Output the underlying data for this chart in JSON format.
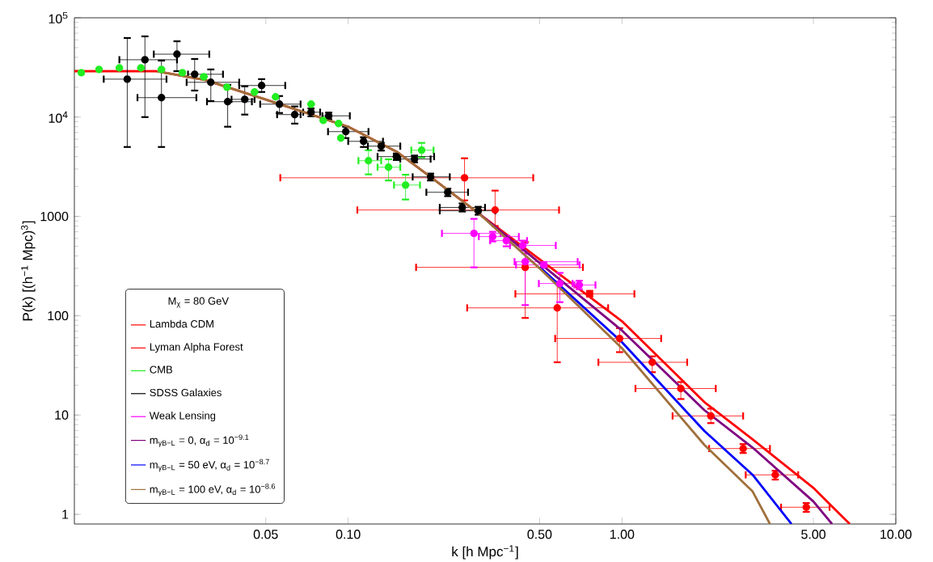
{
  "chart_data": {
    "type": "scatter",
    "xlabel": "k [h Mpc$^{−1}$]",
    "ylabel": "P(k)  [(h$^{−1}$ Mpc)$^{3}$]",
    "legend_title": "M$_{χ}$ = 80 GeV",
    "log": "xy",
    "legend": "bottom left",
    "xlim": [
      0.01,
      10
    ],
    "ylim": [
      0.8,
      100000
    ],
    "xticks": [
      0.05,
      {
        "value": 0.1,
        "label": "0.10"
      },
      {
        "value": 0.5,
        "label": "0.50"
      },
      {
        "value": 1,
        "label": "1.00"
      },
      {
        "value": 5,
        "label": "5.00"
      },
      {
        "value": 10,
        "label": "10.00"
      }
    ],
    "yticks": [
      1,
      10,
      100,
      1000,
      {
        "value": 10000,
        "label": "10$^{4}$"
      },
      {
        "value": 100000,
        "label": "10$^{5}$"
      }
    ],
    "series": [
      {
        "name": "Lambda CDM",
        "type": "line",
        "marker": "none",
        "color": "#ff0000",
        "x": [
          0.01,
          0.02,
          0.03,
          0.05,
          0.1,
          0.15,
          0.2,
          0.3,
          0.5,
          1,
          2,
          3,
          5,
          6.79
        ],
        "values": [
          29000,
          29000,
          23700,
          15000,
          8000,
          4500,
          2500,
          1070,
          370,
          88,
          13.5,
          5.7,
          1.85,
          0.8
        ]
      },
      {
        "name": "Lyman Alpha Forest",
        "marker": "circle",
        "color": "#ff0000",
        "x": [
          0.266,
          0.344,
          0.443,
          0.58,
          0.762,
          0.98,
          1.29,
          1.64,
          2.11,
          2.77,
          3.63,
          4.71
        ],
        "values": [
          2450,
          1160,
          307,
          120,
          166,
          59,
          34,
          18.5,
          9.8,
          4.6,
          2.5,
          1.18
        ],
        "xerrors": [
          [
            0.0565,
            0.474
          ],
          [
            0.108,
            0.589
          ],
          [
            0.177,
            0.72
          ],
          [
            0.272,
            0.89
          ],
          [
            0.408,
            1.11
          ],
          [
            0.57,
            1.39
          ],
          [
            0.82,
            1.73
          ],
          [
            1.12,
            2.2
          ],
          [
            1.53,
            2.77
          ],
          [
            2.08,
            3.47
          ],
          [
            2.83,
            4.4
          ],
          [
            3.81,
            5.73
          ]
        ],
        "errors": [
          [
            1450,
            3850
          ],
          [
            800,
            1820
          ],
          [
            95,
            550
          ],
          [
            34,
            220
          ],
          [
            156,
            178
          ],
          [
            43,
            75
          ],
          [
            27,
            39
          ],
          [
            14.5,
            21.5
          ],
          [
            8.3,
            11.6
          ],
          [
            4.15,
            5.1
          ],
          [
            2.24,
            2.75
          ],
          [
            1.06,
            1.3
          ]
        ]
      },
      {
        "name": "CMB",
        "marker": "circle",
        "color": "#22ee22",
        "x": [
          0.0106,
          0.0123,
          0.0146,
          0.0175,
          0.0208,
          0.0248,
          0.0297,
          0.0361,
          0.0455,
          0.0543,
          0.0732,
          0.0811,
          0.0922,
          0.094,
          0.1186,
          0.1404,
          0.162,
          0.1855
        ],
        "values": [
          28000,
          30200,
          31300,
          31300,
          30200,
          28000,
          25500,
          20000,
          17900,
          16000,
          13500,
          9270,
          8610,
          6150,
          3640,
          3130,
          2070,
          4640
        ],
        "xerrors": [
          null,
          null,
          null,
          null,
          null,
          null,
          null,
          null,
          null,
          null,
          null,
          null,
          null,
          null,
          [
            0.109,
            0.132
          ],
          [
            0.128,
            0.155
          ],
          [
            0.147,
            0.183
          ],
          [
            0.17,
            0.205
          ]
        ],
        "errors": [
          null,
          null,
          null,
          null,
          null,
          null,
          null,
          null,
          null,
          null,
          null,
          null,
          null,
          null,
          [
            2650,
            4640
          ],
          [
            2300,
            3760
          ],
          [
            1480,
            2630
          ],
          [
            3930,
            5500
          ]
        ]
      },
      {
        "name": "SDSS Galaxies",
        "marker": "circle",
        "color": "#000000",
        "x": [
          0.0156,
          0.0181,
          0.0208,
          0.0237,
          0.0275,
          0.0315,
          0.0363,
          0.0419,
          0.0483,
          0.0561,
          0.0638,
          0.0732,
          0.0849,
          0.098,
          0.1138,
          0.132,
          0.15,
          0.1746,
          0.2,
          0.231,
          0.261,
          0.2985
        ],
        "values": [
          24100,
          37800,
          15700,
          43000,
          27000,
          22400,
          14300,
          15100,
          20800,
          13500,
          10600,
          11200,
          10300,
          7140,
          5700,
          5100,
          4000,
          3780,
          2500,
          1750,
          1230,
          1140
        ],
        "xerrors": [
          [
            0.0128,
            0.0217
          ],
          [
            0.0146,
            0.0237
          ],
          [
            0.017,
            0.0279
          ],
          [
            0.0195,
            0.0311
          ],
          [
            0.026,
            0.0349
          ],
          [
            0.0257,
            0.04
          ],
          [
            0.0305,
            0.0445
          ],
          [
            0.0375,
            0.0455
          ],
          [
            0.04,
            0.0589
          ],
          [
            0.0477,
            0.067
          ],
          [
            0.055,
            0.067
          ],
          [
            0.0685,
            0.079
          ],
          [
            0.0805,
            0.1014
          ],
          [
            0.0844,
            0.1186
          ],
          [
            0.1,
            0.134
          ],
          [
            0.118,
            0.155
          ],
          [
            0.128,
            0.206
          ],
          [
            0.155,
            0.2
          ],
          [
            0.172,
            0.235
          ],
          [
            0.193,
            0.274
          ],
          [
            0.216,
            0.316
          ],
          [
            0.216,
            0.345
          ]
        ],
        "errors": [
          [
            5000,
            62600
          ],
          [
            10000,
            65000
          ],
          [
            5000,
            37100
          ],
          [
            29000,
            58000
          ],
          [
            18500,
            38500
          ],
          [
            14500,
            30200
          ],
          [
            8000,
            21100
          ],
          [
            10600,
            20400
          ],
          [
            17900,
            24100
          ],
          [
            11000,
            16300
          ],
          [
            8600,
            12800
          ],
          [
            10200,
            12200
          ],
          [
            9500,
            11100
          ],
          [
            6150,
            7990
          ],
          [
            5000,
            6270
          ],
          [
            4600,
            5500
          ],
          [
            3700,
            4300
          ],
          [
            3500,
            4100
          ],
          [
            2300,
            2700
          ],
          [
            1600,
            1900
          ],
          [
            1120,
            1350
          ],
          [
            1040,
            1250
          ]
        ]
      },
      {
        "name": "Weak Lensing",
        "marker": "circle",
        "color": "#ff00ff",
        "x": [
          0.288,
          0.337,
          0.378,
          0.434,
          0.443,
          0.518,
          0.593,
          0.698
        ],
        "values": [
          675,
          626,
          570,
          510,
          350,
          325,
          211,
          204
        ],
        "xerrors": [
          [
            0.22,
            0.36
          ],
          [
            0.3,
            0.42
          ],
          [
            0.33,
            0.45
          ],
          [
            0.39,
            0.573
          ],
          [
            0.405,
            0.689
          ],
          [
            0.41,
            0.7
          ],
          [
            0.497,
            0.66
          ],
          [
            0.67,
            0.8
          ]
        ],
        "errors": [
          [
            307,
            945
          ],
          [
            560,
            700
          ],
          [
            500,
            640
          ],
          [
            455,
            570
          ],
          [
            128,
            423
          ],
          [
            305,
            345
          ],
          [
            137,
            270
          ],
          [
            185,
            225
          ]
        ]
      },
      {
        "name": "m$_{γB−L}$ = 0, α$_{d}$ = 10$^{−9.1}$",
        "type": "line",
        "marker": "none",
        "color": "#800080",
        "x": [
          0.3,
          0.5,
          1,
          2,
          3,
          5,
          5.85
        ],
        "values": [
          1070,
          340,
          71,
          11.2,
          4.7,
          1.35,
          0.8
        ]
      },
      {
        "name": "m$_{γB−L}$ = 50 eV, α$_{d}$ = 10$^{−8.7}$",
        "type": "line",
        "marker": "none",
        "color": "#0000ff",
        "x": [
          0.5,
          1,
          2,
          3,
          4.16
        ],
        "values": [
          310,
          54,
          6.9,
          2.5,
          0.8
        ]
      },
      {
        "name": "m$_{γB−L}$ = 100 eV, α$_{d}$ = 10$^{−8.6}$",
        "type": "line",
        "marker": "none",
        "color": "#a0703c",
        "x": [
          0.02,
          0.03,
          0.05,
          0.1,
          0.15,
          0.2,
          0.3,
          0.5,
          1,
          2,
          3,
          3.47
        ],
        "values": [
          29000,
          23700,
          15000,
          8000,
          4500,
          2500,
          1070,
          300,
          47,
          5.0,
          1.7,
          0.8
        ]
      }
    ]
  }
}
